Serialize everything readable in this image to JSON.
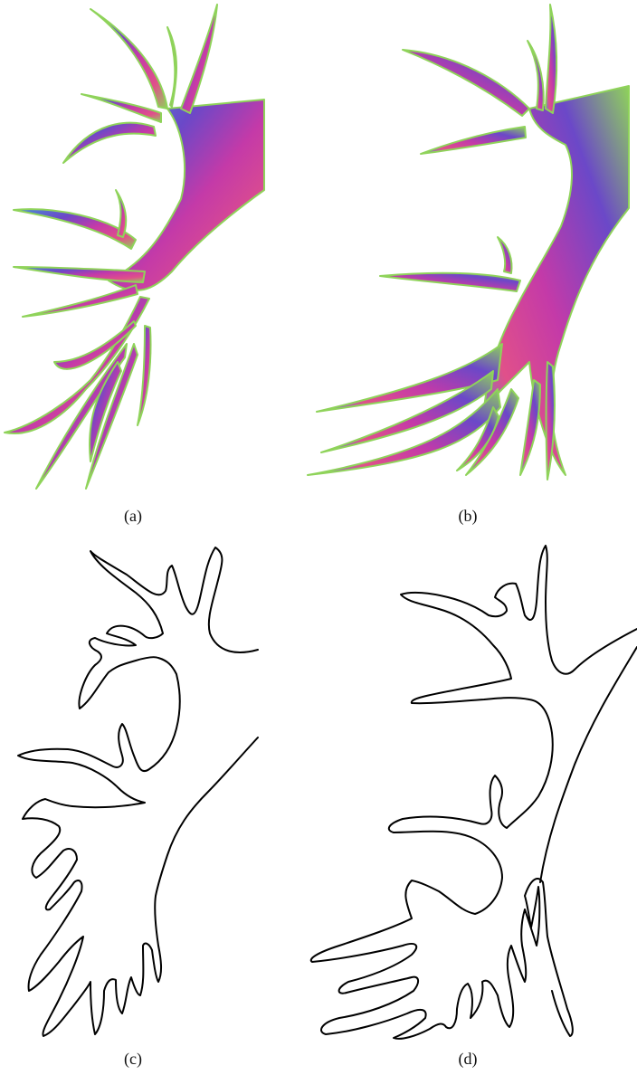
{
  "figure": {
    "panels": [
      {
        "id": "a",
        "label": "(a)",
        "style": "colored"
      },
      {
        "id": "b",
        "label": "(b)",
        "style": "colored"
      },
      {
        "id": "c",
        "label": "(c)",
        "style": "outline"
      },
      {
        "id": "d",
        "label": "(d)",
        "style": "outline"
      }
    ],
    "colors": {
      "magenta": "#c43aa8",
      "purple": "#6b48c8",
      "green": "#8fd35a",
      "blue": "#4a8fd8",
      "pink": "#e0508a",
      "outline": "#000000"
    }
  }
}
